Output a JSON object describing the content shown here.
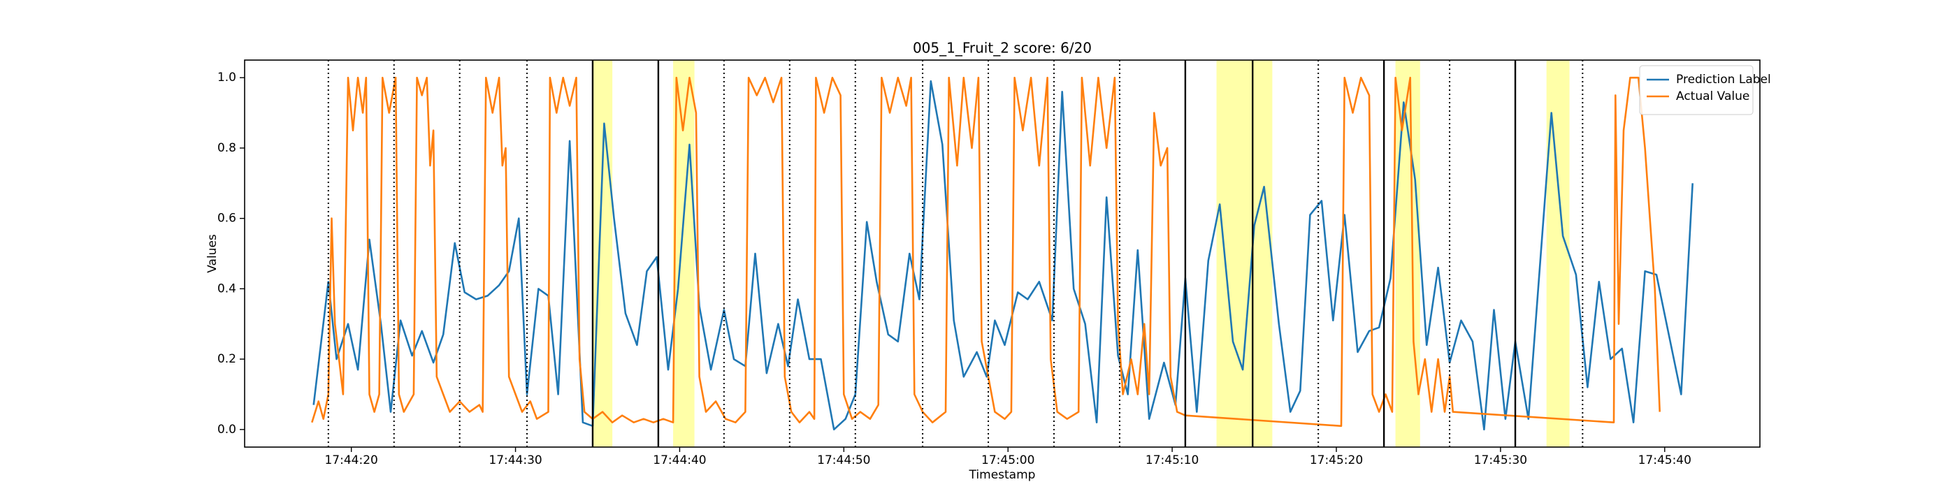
{
  "chart_data": {
    "type": "line",
    "title": "005_1_Fruit_2 score: 6/20",
    "xlabel": "Timestamp",
    "ylabel": "Values",
    "xlim": [
      13.5,
      105.8
    ],
    "ylim": [
      -0.05,
      1.05
    ],
    "xticks": [
      {
        "value": 20,
        "label": "17:44:20"
      },
      {
        "value": 30,
        "label": "17:44:30"
      },
      {
        "value": 40,
        "label": "17:44:40"
      },
      {
        "value": 50,
        "label": "17:44:50"
      },
      {
        "value": 60,
        "label": "17:45:00"
      },
      {
        "value": 70,
        "label": "17:45:10"
      },
      {
        "value": 80,
        "label": "17:45:20"
      },
      {
        "value": 90,
        "label": "17:45:30"
      },
      {
        "value": 100,
        "label": "17:45:40"
      }
    ],
    "yticks": [
      {
        "value": 0,
        "label": "0.0"
      },
      0.2,
      0.4,
      0.6,
      0.8,
      {
        "value": 1,
        "label": "1.0"
      }
    ],
    "legend": "upper right",
    "dotted_lines": [
      18.6,
      22.6,
      26.6,
      30.7,
      42.7,
      46.7,
      50.7,
      54.8,
      58.8,
      62.8,
      66.8,
      78.9,
      86.9,
      95.0
    ],
    "solid_lines": [
      34.7,
      38.7,
      70.8,
      74.9,
      82.9,
      90.9
    ],
    "highlight_color": "#ffff99",
    "highlight_spans": [
      [
        34.7,
        35.9
      ],
      [
        39.6,
        40.9
      ],
      [
        72.7,
        74.9
      ],
      [
        74.9,
        76.1
      ],
      [
        83.6,
        85.1
      ],
      [
        92.8,
        94.2
      ]
    ],
    "series": [
      {
        "name": "Prediction Label",
        "color": "#1f77b4",
        "x": [
          17.7,
          18.6,
          19.1,
          19.8,
          20.4,
          21.1,
          21.8,
          22.4,
          23.0,
          23.7,
          24.3,
          25.0,
          25.6,
          26.3,
          26.9,
          27.6,
          28.3,
          29.0,
          29.6,
          30.2,
          30.7,
          31.4,
          32.0,
          32.6,
          33.3,
          34.1,
          34.7,
          35.4,
          36.0,
          36.7,
          37.4,
          38.0,
          38.6,
          39.3,
          39.9,
          40.6,
          41.2,
          41.9,
          42.7,
          43.3,
          44.0,
          44.6,
          45.3,
          46.0,
          46.6,
          47.2,
          47.9,
          48.6,
          49.4,
          50.1,
          50.7,
          51.4,
          52.0,
          52.7,
          53.3,
          54.0,
          54.6,
          55.3,
          56.0,
          56.7,
          57.3,
          58.1,
          58.7,
          59.2,
          59.8,
          60.6,
          61.2,
          61.9,
          62.7,
          63.3,
          64.0,
          64.7,
          65.4,
          66.0,
          66.7,
          67.3,
          67.9,
          68.6,
          69.5,
          70.2,
          70.8,
          71.5,
          72.2,
          72.9,
          73.7,
          74.3,
          75.0,
          75.6,
          76.5,
          77.2,
          77.8,
          78.4,
          79.1,
          79.8,
          80.5,
          81.3,
          82.0,
          82.6,
          83.3,
          84.1,
          84.8,
          85.5,
          86.2,
          86.9,
          87.6,
          88.3,
          89.0,
          89.6,
          90.3,
          90.9,
          91.7,
          93.1,
          93.8,
          94.6,
          95.3,
          96.0,
          96.7,
          97.4,
          98.1,
          98.8,
          99.5,
          101.0,
          101.7
        ],
        "values": [
          0.07,
          0.42,
          0.2,
          0.3,
          0.17,
          0.54,
          0.3,
          0.05,
          0.31,
          0.21,
          0.28,
          0.19,
          0.27,
          0.53,
          0.39,
          0.37,
          0.38,
          0.41,
          0.45,
          0.6,
          0.1,
          0.4,
          0.38,
          0.1,
          0.82,
          0.02,
          0.01,
          0.87,
          0.6,
          0.33,
          0.24,
          0.45,
          0.49,
          0.17,
          0.4,
          0.81,
          0.35,
          0.17,
          0.34,
          0.2,
          0.18,
          0.5,
          0.16,
          0.3,
          0.18,
          0.37,
          0.2,
          0.2,
          0.0,
          0.03,
          0.1,
          0.59,
          0.42,
          0.27,
          0.25,
          0.5,
          0.37,
          0.99,
          0.81,
          0.31,
          0.15,
          0.22,
          0.15,
          0.31,
          0.24,
          0.39,
          0.37,
          0.42,
          0.31,
          0.96,
          0.4,
          0.3,
          0.02,
          0.66,
          0.21,
          0.1,
          0.51,
          0.03,
          0.19,
          0.07,
          0.43,
          0.05,
          0.48,
          0.64,
          0.25,
          0.17,
          0.58,
          0.69,
          0.3,
          0.05,
          0.11,
          0.61,
          0.65,
          0.31,
          0.61,
          0.22,
          0.28,
          0.29,
          0.43,
          0.93,
          0.71,
          0.24,
          0.46,
          0.19,
          0.31,
          0.25,
          0.0,
          0.34,
          0.03,
          0.25,
          0.03,
          0.9,
          0.55,
          0.44,
          0.12,
          0.42,
          0.2,
          0.23,
          0.02,
          0.45,
          0.44,
          0.1,
          0.7
        ]
      },
      {
        "name": "Actual Value",
        "color": "#ff7f0e",
        "x": [
          17.6,
          18.0,
          18.3,
          18.6,
          18.8,
          19.0,
          19.5,
          19.8,
          20.1,
          20.4,
          20.7,
          20.9,
          21.1,
          21.4,
          21.7,
          21.9,
          22.3,
          22.7,
          22.9,
          23.2,
          23.8,
          24.0,
          24.3,
          24.6,
          24.8,
          25.0,
          25.2,
          25.6,
          26.0,
          26.6,
          27.2,
          27.8,
          28.0,
          28.2,
          28.6,
          29.0,
          29.2,
          29.4,
          29.6,
          30.0,
          30.4,
          30.9,
          31.3,
          32.0,
          32.1,
          32.5,
          32.9,
          33.3,
          33.7,
          33.9,
          34.2,
          34.7,
          35.3,
          35.9,
          36.5,
          37.2,
          37.8,
          38.4,
          39.0,
          39.6,
          39.8,
          40.2,
          40.6,
          41.0,
          41.2,
          41.6,
          42.2,
          42.8,
          43.4,
          44.0,
          44.2,
          44.7,
          45.2,
          45.7,
          46.2,
          46.4,
          46.8,
          47.3,
          47.9,
          48.2,
          48.3,
          48.8,
          49.3,
          49.8,
          50.0,
          50.5,
          51.0,
          51.6,
          52.1,
          52.3,
          52.8,
          53.3,
          53.8,
          54.1,
          54.3,
          54.8,
          55.4,
          56.2,
          56.4,
          56.9,
          57.3,
          57.8,
          58.2,
          58.4,
          58.8,
          59.2,
          59.8,
          60.2,
          60.4,
          60.9,
          61.4,
          61.9,
          62.4,
          62.6,
          63.0,
          63.6,
          64.3,
          64.5,
          65.0,
          65.5,
          66.0,
          66.5,
          66.7,
          67.0,
          67.5,
          67.9,
          68.3,
          68.6,
          68.9,
          69.3,
          69.7,
          69.9,
          70.3,
          70.8,
          80.3,
          80.5,
          81.0,
          81.5,
          82.0,
          82.2,
          82.6,
          83.0,
          83.4,
          83.6,
          84.0,
          84.5,
          84.7,
          85.0,
          85.4,
          85.8,
          86.2,
          86.6,
          86.9,
          87.1,
          96.9,
          97.0,
          97.2,
          97.5,
          97.9,
          98.4,
          98.8,
          99.1,
          99.4,
          99.7
        ],
        "values": [
          0.02,
          0.08,
          0.03,
          0.1,
          0.6,
          0.3,
          0.1,
          1.0,
          0.85,
          1.0,
          0.9,
          1.0,
          0.1,
          0.05,
          0.1,
          1.0,
          0.9,
          1.0,
          0.1,
          0.05,
          0.1,
          1.0,
          0.95,
          1.0,
          0.75,
          0.85,
          0.15,
          0.1,
          0.05,
          0.08,
          0.05,
          0.07,
          0.05,
          1.0,
          0.9,
          1.0,
          0.75,
          0.8,
          0.15,
          0.1,
          0.05,
          0.08,
          0.03,
          0.05,
          1.0,
          0.9,
          1.0,
          0.92,
          1.0,
          0.2,
          0.05,
          0.03,
          0.05,
          0.02,
          0.04,
          0.02,
          0.03,
          0.02,
          0.03,
          0.02,
          1.0,
          0.85,
          1.0,
          0.9,
          0.15,
          0.05,
          0.08,
          0.03,
          0.02,
          0.05,
          1.0,
          0.95,
          1.0,
          0.93,
          1.0,
          0.15,
          0.05,
          0.02,
          0.05,
          0.03,
          1.0,
          0.9,
          1.0,
          0.95,
          0.1,
          0.03,
          0.05,
          0.03,
          0.07,
          1.0,
          0.9,
          1.0,
          0.92,
          1.0,
          0.1,
          0.05,
          0.02,
          0.05,
          1.0,
          0.75,
          1.0,
          0.8,
          1.0,
          0.25,
          0.15,
          0.05,
          0.03,
          0.05,
          1.0,
          0.85,
          1.0,
          0.75,
          1.0,
          0.2,
          0.05,
          0.03,
          0.05,
          1.0,
          0.75,
          1.0,
          0.8,
          1.0,
          0.3,
          0.1,
          0.2,
          0.1,
          0.3,
          0.1,
          0.9,
          0.75,
          0.8,
          0.15,
          0.05,
          0.04,
          0.01,
          1.0,
          0.9,
          1.0,
          0.95,
          0.1,
          0.05,
          0.1,
          0.05,
          1.0,
          0.85,
          1.0,
          0.25,
          0.1,
          0.2,
          0.05,
          0.2,
          0.05,
          0.15,
          0.05,
          0.02,
          0.95,
          0.3,
          0.85,
          1.0,
          1.0,
          0.8,
          0.6,
          0.4,
          0.05
        ]
      }
    ]
  }
}
